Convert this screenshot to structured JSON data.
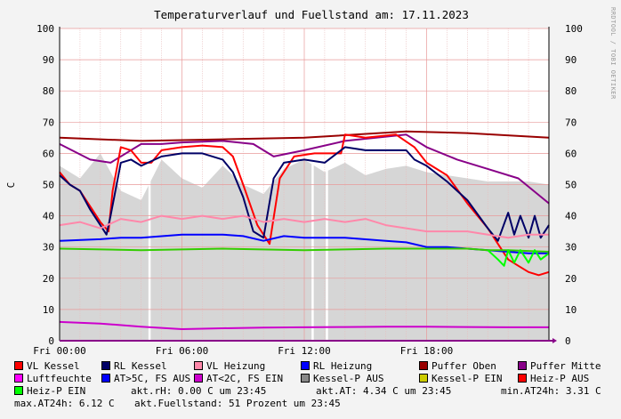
{
  "chart_data": {
    "type": "line",
    "title": "Temperaturverlauf und Fuellstand am: 17.11.2023",
    "ylabel": "C",
    "watermark": "RRDTOOL / TOBI OETIKER",
    "ylim": [
      0,
      100
    ],
    "y_ticks": [
      0,
      10,
      20,
      30,
      40,
      50,
      60,
      70,
      80,
      90,
      100
    ],
    "x_range_hours": [
      0,
      24
    ],
    "x_ticks": [
      {
        "h": 0,
        "label": "Fri 00:00"
      },
      {
        "h": 6,
        "label": "Fri 06:00"
      },
      {
        "h": 12,
        "label": "Fri 12:00"
      },
      {
        "h": 18,
        "label": "Fri 18:00"
      }
    ],
    "fill_area": {
      "name": "Kessel-P AUS",
      "color": "#d6d6d6",
      "points": [
        [
          0,
          56
        ],
        [
          1,
          52
        ],
        [
          2,
          60
        ],
        [
          3,
          48
        ],
        [
          4,
          45
        ],
        [
          5,
          58
        ],
        [
          6,
          52
        ],
        [
          7,
          49
        ],
        [
          8,
          56
        ],
        [
          9,
          50
        ],
        [
          10,
          47
        ],
        [
          11,
          55
        ],
        [
          12,
          58
        ],
        [
          13,
          54
        ],
        [
          14,
          57
        ],
        [
          15,
          53
        ],
        [
          16,
          55
        ],
        [
          17,
          56
        ],
        [
          18,
          54
        ],
        [
          19,
          53
        ],
        [
          20,
          52
        ],
        [
          21,
          51
        ],
        [
          22,
          51
        ],
        [
          23,
          51
        ],
        [
          24,
          50
        ]
      ],
      "gaps_hours": [
        4.4,
        12.4,
        13.1
      ]
    },
    "series": [
      {
        "name": "Puffer Oben",
        "color": "#990000",
        "points": [
          [
            0,
            65
          ],
          [
            4,
            64
          ],
          [
            8,
            64.5
          ],
          [
            12,
            65
          ],
          [
            17,
            67
          ],
          [
            20,
            66.5
          ],
          [
            24,
            65
          ]
        ]
      },
      {
        "name": "Puffer Mitte",
        "color": "#880088",
        "points": [
          [
            0,
            63
          ],
          [
            1.5,
            58
          ],
          [
            2.5,
            57
          ],
          [
            4,
            63
          ],
          [
            5,
            63
          ],
          [
            6,
            63.5
          ],
          [
            8,
            64
          ],
          [
            9.5,
            63
          ],
          [
            10.5,
            59
          ],
          [
            12,
            61
          ],
          [
            14,
            64
          ],
          [
            17,
            66
          ],
          [
            18,
            62
          ],
          [
            19.5,
            58
          ],
          [
            21,
            55
          ],
          [
            22.5,
            52
          ],
          [
            24,
            44
          ]
        ]
      },
      {
        "name": "VL Kessel",
        "color": "#ff0000",
        "points": [
          [
            0,
            54
          ],
          [
            0.5,
            50
          ],
          [
            1,
            48
          ],
          [
            1.6,
            42
          ],
          [
            2,
            38
          ],
          [
            2.4,
            35
          ],
          [
            2.6,
            48
          ],
          [
            3,
            62
          ],
          [
            3.5,
            61
          ],
          [
            4,
            57
          ],
          [
            4.5,
            57
          ],
          [
            5,
            61
          ],
          [
            6,
            62
          ],
          [
            7,
            62.5
          ],
          [
            8,
            62
          ],
          [
            8.5,
            59
          ],
          [
            9,
            50
          ],
          [
            9.7,
            37
          ],
          [
            10.3,
            31
          ],
          [
            10.8,
            52
          ],
          [
            11.5,
            59
          ],
          [
            12.5,
            60
          ],
          [
            13.8,
            60
          ],
          [
            14,
            66
          ],
          [
            15,
            65
          ],
          [
            16.5,
            66
          ],
          [
            17.4,
            62
          ],
          [
            18,
            57
          ],
          [
            19,
            53
          ],
          [
            20,
            44
          ],
          [
            21,
            36
          ],
          [
            21.5,
            31
          ],
          [
            22,
            26
          ],
          [
            22.5,
            24
          ],
          [
            23,
            22
          ],
          [
            23.5,
            21
          ],
          [
            24,
            22
          ]
        ]
      },
      {
        "name": "RL Kessel",
        "color": "#000066",
        "points": [
          [
            0,
            53
          ],
          [
            0.5,
            50
          ],
          [
            1,
            48
          ],
          [
            1.5,
            42
          ],
          [
            2,
            37
          ],
          [
            2.3,
            34
          ],
          [
            2.5,
            40
          ],
          [
            3,
            57
          ],
          [
            3.5,
            58
          ],
          [
            4,
            56
          ],
          [
            5,
            59
          ],
          [
            6,
            60
          ],
          [
            7,
            60
          ],
          [
            8,
            58
          ],
          [
            8.5,
            54
          ],
          [
            9,
            46
          ],
          [
            9.5,
            35
          ],
          [
            10,
            33
          ],
          [
            10.5,
            52
          ],
          [
            11,
            57
          ],
          [
            12,
            58
          ],
          [
            13,
            57
          ],
          [
            14,
            62
          ],
          [
            15,
            61
          ],
          [
            16,
            61
          ],
          [
            17,
            61
          ],
          [
            17.4,
            58
          ],
          [
            18,
            56
          ],
          [
            19,
            51
          ],
          [
            20,
            45
          ],
          [
            21,
            36
          ],
          [
            21.5,
            32
          ],
          [
            22,
            41
          ],
          [
            22.3,
            34
          ],
          [
            22.6,
            40
          ],
          [
            23,
            33
          ],
          [
            23.3,
            40
          ],
          [
            23.6,
            33
          ],
          [
            24,
            37
          ]
        ]
      },
      {
        "name": "VL Heizung",
        "color": "#ff88aa",
        "points": [
          [
            0,
            37
          ],
          [
            1,
            38
          ],
          [
            2,
            36
          ],
          [
            3,
            39
          ],
          [
            4,
            38
          ],
          [
            5,
            40
          ],
          [
            6,
            39
          ],
          [
            7,
            40
          ],
          [
            8,
            39
          ],
          [
            9,
            40
          ],
          [
            10,
            38
          ],
          [
            11,
            39
          ],
          [
            12,
            38
          ],
          [
            13,
            39
          ],
          [
            14,
            38
          ],
          [
            15,
            39
          ],
          [
            16,
            37
          ],
          [
            17,
            36
          ],
          [
            18,
            35
          ],
          [
            19,
            35
          ],
          [
            20,
            35
          ],
          [
            21,
            34
          ],
          [
            22,
            33
          ],
          [
            23,
            34
          ],
          [
            24,
            34
          ]
        ]
      },
      {
        "name": "RL Heizung",
        "color": "#0000ff",
        "points": [
          [
            0,
            32
          ],
          [
            2,
            32.5
          ],
          [
            3,
            33
          ],
          [
            4,
            33
          ],
          [
            6,
            34
          ],
          [
            8,
            34
          ],
          [
            9,
            33.5
          ],
          [
            10,
            32
          ],
          [
            11,
            33.5
          ],
          [
            12,
            33
          ],
          [
            14,
            33
          ],
          [
            16,
            32
          ],
          [
            17,
            31.5
          ],
          [
            18,
            30
          ],
          [
            19,
            30
          ],
          [
            20,
            29.5
          ],
          [
            21,
            29
          ],
          [
            22,
            28.5
          ],
          [
            23,
            28
          ],
          [
            24,
            28
          ]
        ]
      },
      {
        "name": "AT>5C, FS AUS",
        "color": "#33cc00",
        "points": [
          [
            0,
            29.5
          ],
          [
            4,
            29
          ],
          [
            8,
            29.5
          ],
          [
            12,
            29
          ],
          [
            16,
            29.5
          ],
          [
            20,
            29.5
          ],
          [
            21,
            29
          ],
          [
            22,
            29
          ],
          [
            24,
            28.5
          ]
        ]
      },
      {
        "name": "Heiz-P EIN",
        "color": "#00ff00",
        "points": [
          [
            21,
            29
          ],
          [
            21.5,
            26
          ],
          [
            21.8,
            24
          ],
          [
            22,
            29
          ],
          [
            22.3,
            25
          ],
          [
            22.6,
            29
          ],
          [
            23,
            25
          ],
          [
            23.3,
            29
          ],
          [
            23.6,
            26
          ],
          [
            24,
            28
          ]
        ]
      },
      {
        "name": "Luftfeuchte",
        "color": "#cc00cc",
        "points": [
          [
            0,
            6
          ],
          [
            2,
            5.5
          ],
          [
            4,
            4.5
          ],
          [
            6,
            3.7
          ],
          [
            8,
            4
          ],
          [
            10,
            4.2
          ],
          [
            12,
            4.3
          ],
          [
            14,
            4.4
          ],
          [
            16,
            4.5
          ],
          [
            18,
            4.5
          ],
          [
            20,
            4.4
          ],
          [
            22,
            4.3
          ],
          [
            24,
            4.3
          ]
        ]
      }
    ],
    "legend": [
      [
        {
          "label": "VL Kessel",
          "color": "#ff0000"
        },
        {
          "label": "RL Kessel",
          "color": "#000066"
        },
        {
          "label": "VL Heizung",
          "color": "#ff88aa"
        },
        {
          "label": "RL Heizung",
          "color": "#0000ff"
        },
        {
          "label": "Puffer Oben",
          "color": "#990000"
        },
        {
          "label": "Puffer Mitte",
          "color": "#880088"
        }
      ],
      [
        {
          "label": "Luftfeuchte",
          "color": "#ff00ff"
        },
        {
          "label": "AT>5C, FS AUS",
          "color": "#0000ff"
        },
        {
          "label": "AT<2C, FS EIN",
          "color": "#cc00cc"
        },
        {
          "label": "Kessel-P AUS",
          "color": "#888888"
        },
        {
          "label": "Kessel-P EIN",
          "color": "#cccc00"
        },
        {
          "label": "Heiz-P AUS",
          "color": "#ff0000"
        }
      ]
    ],
    "legend_row3": {
      "label": "Heiz-P EIN",
      "color": "#00ff00"
    },
    "stats": {
      "akt_rh": "akt.rH: 0.00 C um 23:45",
      "akt_at": "akt.AT: 4.34 C um 23:45",
      "min_at": "min.AT24h: 3.31 C",
      "max_at": "max.AT24h: 6.12 C",
      "fuellstand": "akt.Fuellstand:   51 Prozent um 23:45"
    }
  }
}
